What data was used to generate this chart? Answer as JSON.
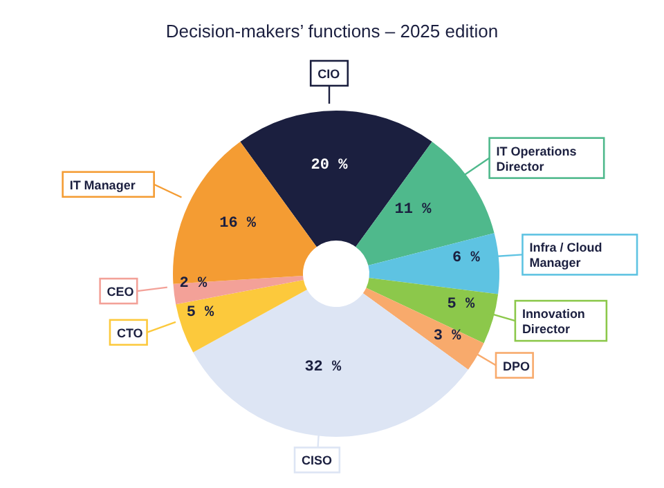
{
  "chart_data": {
    "type": "donut",
    "title": "Decision-makers’ functions – 2025 edition",
    "categories": [
      "CIO",
      "IT Operations Director",
      "Infra / Cloud Manager",
      "Innovation Director",
      "DPO",
      "CISO",
      "CTO",
      "CEO",
      "IT Manager"
    ],
    "values": [
      20,
      11,
      6,
      5,
      3,
      32,
      5,
      2,
      16
    ],
    "value_labels": [
      "20 %",
      "11 %",
      "6 %",
      "5 %",
      "3 %",
      "32 %",
      "5 %",
      "2 %",
      "16 %"
    ],
    "colors": [
      "#1b1f3f",
      "#4fb98c",
      "#5ec3e2",
      "#8cc84b",
      "#f8aa6c",
      "#dde5f4",
      "#fcc93c",
      "#f3a198",
      "#f49c33"
    ]
  }
}
